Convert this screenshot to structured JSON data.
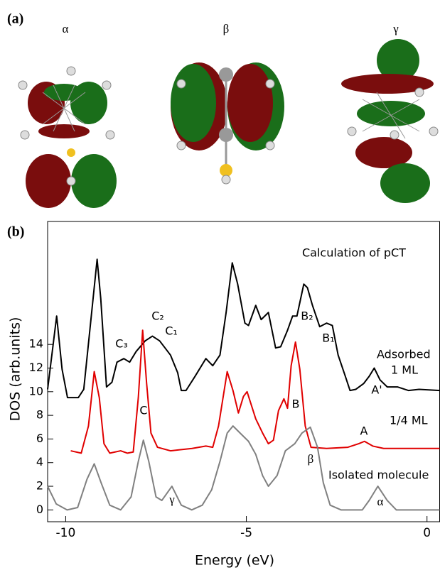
{
  "figure": {
    "panel_a_label": "(a)",
    "orbital_labels": [
      "α",
      "β",
      "γ"
    ],
    "panel_b_label": "(b)"
  },
  "chart_data": {
    "type": "line",
    "xlabel": "Energy (eV)",
    "ylabel": "DOS (arb.units)",
    "xlim": [
      -10.5,
      0.35
    ],
    "ylim": [
      -1,
      24.4
    ],
    "xticks": [
      -10,
      -5,
      0
    ],
    "yticks": [
      0,
      2,
      4,
      6,
      8,
      10,
      12,
      14
    ],
    "annotations": [
      "Calculation of pCT",
      "C₂",
      "C₁",
      "C₃",
      "B₂",
      "B₁",
      "Adsorbed",
      "1  ML",
      "A'",
      "C",
      "B",
      "1/4 ML",
      "A",
      "β",
      "Isolated molecule",
      "γ",
      "α"
    ],
    "series": [
      {
        "color": "#000000",
        "x": [
          -10.5,
          -10.25,
          -10.1,
          -9.95,
          -9.65,
          -9.5,
          -9.13,
          -9.03,
          -8.87,
          -8.72,
          -8.58,
          -8.39,
          -8.23,
          -8.05,
          -7.8,
          -7.6,
          -7.4,
          -7.1,
          -6.9,
          -6.8,
          -6.67,
          -6.42,
          -6.12,
          -5.93,
          -5.73,
          -5.56,
          -5.39,
          -5.24,
          -5.04,
          -4.94,
          -4.74,
          -4.59,
          -4.39,
          -4.19,
          -4.05,
          -3.86,
          -3.72,
          -3.6,
          -3.41,
          -3.31,
          -3.17,
          -2.97,
          -2.78,
          -2.62,
          -2.46,
          -2.26,
          -2.13,
          -1.97,
          -1.75,
          -1.6,
          -1.46,
          -1.3,
          -1.1,
          -0.81,
          -0.51,
          -0.22,
          0.35
        ],
        "values": [
          10.2,
          16.4,
          11.9,
          9.5,
          9.5,
          10.2,
          21.2,
          17.9,
          10.4,
          10.8,
          12.5,
          12.8,
          12.5,
          13.4,
          14.3,
          14.7,
          14.3,
          13.1,
          11.6,
          10.1,
          10.1,
          11.3,
          12.8,
          12.2,
          13.1,
          16.7,
          20.9,
          19.1,
          15.8,
          15.6,
          17.3,
          16.1,
          16.7,
          13.7,
          13.8,
          15.2,
          16.4,
          16.4,
          19.1,
          18.8,
          17.3,
          15.5,
          15.8,
          15.6,
          13.1,
          11.3,
          10.1,
          10.2,
          10.7,
          11.3,
          12.0,
          11.0,
          10.4,
          10.4,
          10.1,
          10.2,
          10.1
        ]
      },
      {
        "color": "#e00000",
        "x": [
          -9.86,
          -9.57,
          -9.37,
          -9.21,
          -9.07,
          -8.94,
          -8.78,
          -8.48,
          -8.29,
          -8.13,
          -7.99,
          -7.87,
          -7.76,
          -7.64,
          -7.46,
          -7.1,
          -6.5,
          -6.12,
          -5.93,
          -5.77,
          -5.53,
          -5.37,
          -5.22,
          -5.08,
          -4.98,
          -4.74,
          -4.55,
          -4.39,
          -4.25,
          -4.11,
          -3.96,
          -3.86,
          -3.76,
          -3.64,
          -3.52,
          -3.37,
          -3.21,
          -2.78,
          -2.19,
          -1.89,
          -1.73,
          -1.5,
          -1.2,
          0.35
        ],
        "values": [
          5.0,
          4.8,
          7.1,
          11.7,
          9.5,
          5.6,
          4.8,
          5.0,
          4.8,
          4.9,
          9.5,
          15.2,
          10.7,
          6.5,
          5.3,
          5.0,
          5.2,
          5.4,
          5.3,
          7.1,
          11.7,
          10.1,
          8.2,
          9.6,
          10.0,
          7.7,
          6.5,
          5.6,
          5.9,
          8.4,
          9.4,
          8.6,
          12.2,
          14.2,
          11.9,
          7.1,
          5.3,
          5.2,
          5.3,
          5.6,
          5.8,
          5.4,
          5.2,
          5.2
        ]
      },
      {
        "color": "#808080",
        "x": [
          -10.5,
          -10.26,
          -9.96,
          -9.67,
          -9.41,
          -9.21,
          -9.02,
          -8.78,
          -8.48,
          -8.19,
          -7.99,
          -7.85,
          -7.7,
          -7.5,
          -7.34,
          -7.06,
          -6.8,
          -6.51,
          -6.22,
          -5.96,
          -5.73,
          -5.53,
          -5.37,
          -5.14,
          -4.94,
          -4.74,
          -4.55,
          -4.39,
          -4.15,
          -3.92,
          -3.66,
          -3.46,
          -3.23,
          -3.03,
          -2.87,
          -2.68,
          -2.38,
          -1.79,
          -1.6,
          -1.36,
          -1.1,
          -0.85,
          0.35
        ],
        "values": [
          2.0,
          0.5,
          0,
          0.2,
          2.6,
          3.9,
          2.3,
          0.4,
          0,
          1.1,
          4.1,
          5.9,
          4.1,
          1.1,
          0.8,
          2.0,
          0.4,
          0,
          0.4,
          1.7,
          4.1,
          6.5,
          7.1,
          6.4,
          5.8,
          4.7,
          2.9,
          2.0,
          2.9,
          5.0,
          5.6,
          6.5,
          7.0,
          5.3,
          2.3,
          0.4,
          0,
          0,
          0.8,
          2.0,
          0.8,
          0,
          0
        ]
      }
    ]
  }
}
